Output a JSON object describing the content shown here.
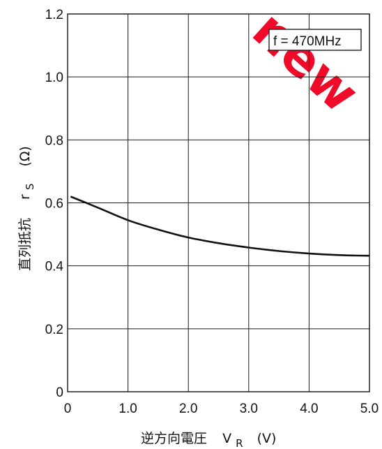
{
  "watermark": {
    "text": "new",
    "color": "#f00a2a"
  },
  "chart_data": {
    "type": "line",
    "annotation": "f = 470MHz",
    "xlabel": {
      "main": "逆方向電圧",
      "symbol": "V",
      "sub": "R",
      "unit": "(V)"
    },
    "ylabel": {
      "main": "直列抵抗",
      "symbol": "r",
      "sub": "S",
      "unit": "(Ω)"
    },
    "xlim": [
      0,
      5.0
    ],
    "ylim": [
      0,
      1.2
    ],
    "xticks": [
      0,
      1.0,
      2.0,
      3.0,
      4.0,
      5.0
    ],
    "xtick_labels": [
      "0",
      "1.0",
      "2.0",
      "3.0",
      "4.0",
      "5.0"
    ],
    "yticks": [
      0,
      0.2,
      0.4,
      0.6,
      0.8,
      1.0,
      1.2
    ],
    "ytick_labels": [
      "0",
      "0.2",
      "0.4",
      "0.6",
      "0.8",
      "1.0",
      "1.2"
    ],
    "grid": true,
    "series": [
      {
        "x": [
          0.05,
          0.5,
          1.0,
          1.5,
          2.0,
          2.5,
          3.0,
          3.5,
          4.0,
          4.5,
          5.0
        ],
        "y": [
          0.62,
          0.585,
          0.545,
          0.515,
          0.49,
          0.472,
          0.458,
          0.447,
          0.439,
          0.434,
          0.432
        ]
      }
    ]
  }
}
